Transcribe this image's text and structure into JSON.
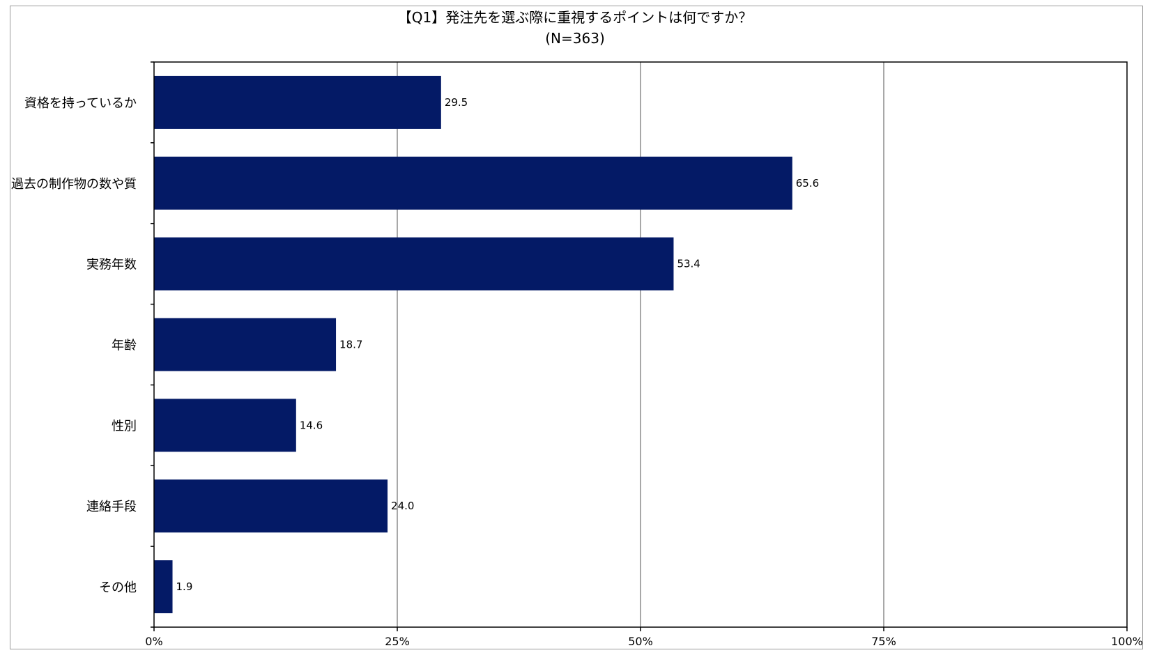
{
  "chart_data": {
    "type": "bar",
    "orientation": "horizontal",
    "title": "【Q1】発注先を選ぶ際に重視するポイントは何ですか？",
    "subtitle": "(N=363)",
    "categories": [
      "資格を持っているか",
      "過去の制作物の数や質",
      "実務年数",
      "年齢",
      "性別",
      "連絡手段",
      "その他"
    ],
    "values": [
      29.5,
      65.6,
      53.4,
      18.7,
      14.6,
      24.0,
      1.9
    ],
    "value_labels": [
      "29.5",
      "65.6",
      "53.4",
      "18.7",
      "14.6",
      "24.0",
      "1.9"
    ],
    "xlim": [
      0,
      100
    ],
    "x_ticks": [
      0,
      25,
      50,
      75,
      100
    ],
    "x_tick_labels": [
      "0%",
      "25%",
      "50%",
      "75%",
      "100%"
    ],
    "xlabel": "",
    "ylabel": "",
    "grid": "vertical",
    "legend": "none",
    "bar_color": "#041A66",
    "grid_color": "#8c8c8c"
  }
}
